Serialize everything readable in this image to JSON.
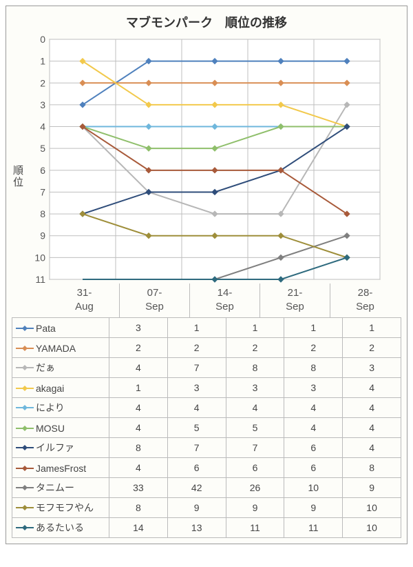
{
  "title": "マブモンパーク　順位の推移",
  "ylabel": "順位",
  "chart": {
    "type": "line",
    "background_color": "#fdfdf9",
    "plot_border_color": "#888888",
    "grid_color": "#bfbfbf",
    "ylim": [
      0,
      11
    ],
    "ytick_step": 1,
    "yticks": [
      0,
      1,
      2,
      3,
      4,
      5,
      6,
      7,
      8,
      9,
      10,
      11
    ],
    "x_categories": [
      "31-Aug",
      "07-Sep",
      "14-Sep",
      "21-Sep",
      "28-Sep"
    ],
    "line_width": 2,
    "marker_size": 4,
    "marker_style": "diamond"
  },
  "series": [
    {
      "name": "Pata",
      "color": "#4f81bd",
      "data": [
        3,
        1,
        1,
        1,
        1
      ]
    },
    {
      "name": "YAMADA",
      "color": "#d98e54",
      "data": [
        2,
        2,
        2,
        2,
        2
      ]
    },
    {
      "name": "だぁ",
      "color": "#b7b7b7",
      "data": [
        4,
        7,
        8,
        8,
        3
      ]
    },
    {
      "name": "akagai",
      "color": "#f2c94c",
      "data": [
        1,
        3,
        3,
        3,
        4
      ]
    },
    {
      "name": "により",
      "color": "#6fb7dc",
      "data": [
        4,
        4,
        4,
        4,
        4
      ]
    },
    {
      "name": "MOSU",
      "color": "#8fbf6b",
      "data": [
        4,
        5,
        5,
        4,
        4
      ]
    },
    {
      "name": "イルファ",
      "color": "#2f4d7a",
      "data": [
        8,
        7,
        7,
        6,
        4
      ]
    },
    {
      "name": "JamesFrost",
      "color": "#a85a3a",
      "data": [
        4,
        6,
        6,
        6,
        8
      ]
    },
    {
      "name": "タニムー",
      "color": "#7f7f7f",
      "data": [
        33,
        42,
        26,
        10,
        9
      ]
    },
    {
      "name": "モフモフやん",
      "color": "#9e8e3a",
      "data": [
        8,
        9,
        9,
        9,
        10
      ]
    },
    {
      "name": "あるたいる",
      "color": "#2e6a7e",
      "data": [
        14,
        13,
        11,
        11,
        10
      ]
    }
  ]
}
